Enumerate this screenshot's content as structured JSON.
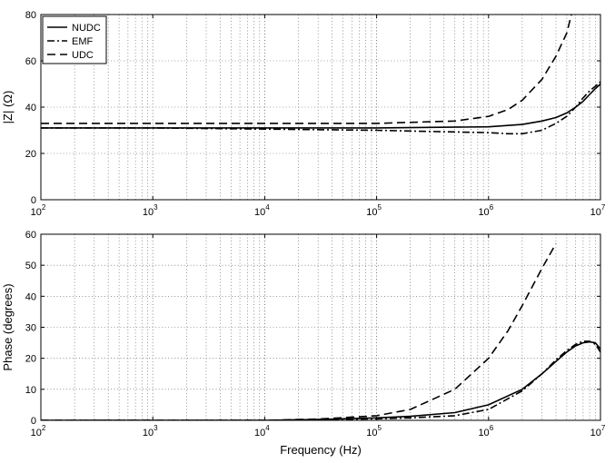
{
  "chart_data": [
    {
      "type": "line",
      "xscale": "log",
      "xlim": [
        100,
        10000000
      ],
      "ylim": [
        0,
        80
      ],
      "yticks": [
        0,
        20,
        40,
        60,
        80
      ],
      "xticks": [
        {
          "base": "10",
          "exp": "2"
        },
        {
          "base": "10",
          "exp": "3"
        },
        {
          "base": "10",
          "exp": "4"
        },
        {
          "base": "10",
          "exp": "5"
        },
        {
          "base": "10",
          "exp": "6"
        },
        {
          "base": "10",
          "exp": "7"
        }
      ],
      "xlabel": "",
      "ylabel": "|Z| (Ω)",
      "grid": true,
      "legend": "top-left",
      "series": [
        {
          "name": "NUDC",
          "style": "solid",
          "x": [
            100,
            1000,
            10000,
            100000,
            1000000,
            2000000,
            3000000,
            4000000,
            5000000,
            6000000,
            7000000,
            8000000,
            9000000,
            10000000
          ],
          "y": [
            31,
            31,
            31,
            31,
            31.5,
            32.5,
            34,
            35.5,
            37.5,
            40,
            42.5,
            45.5,
            48,
            50
          ]
        },
        {
          "name": "EMF",
          "style": "dashdot",
          "x": [
            100,
            1000,
            10000,
            100000,
            300000,
            1000000,
            1500000,
            2000000,
            3000000,
            4000000,
            5000000,
            6000000,
            7000000,
            8000000,
            9000000,
            10000000
          ],
          "y": [
            31,
            31,
            30.5,
            30,
            29.5,
            29,
            28.5,
            28.5,
            30,
            33,
            36,
            40,
            44,
            47,
            49,
            51
          ]
        },
        {
          "name": "UDC",
          "style": "dashed",
          "x": [
            100,
            1000,
            10000,
            100000,
            500000,
            1000000,
            1500000,
            2000000,
            3000000,
            4000000,
            5000000,
            5500000
          ],
          "y": [
            33,
            33,
            33,
            33,
            34,
            36,
            39,
            43,
            52,
            62,
            72,
            80
          ]
        }
      ]
    },
    {
      "type": "line",
      "xscale": "log",
      "xlim": [
        100,
        10000000
      ],
      "ylim": [
        0,
        60
      ],
      "yticks": [
        0,
        10,
        20,
        30,
        40,
        50,
        60
      ],
      "xticks": [
        {
          "base": "10",
          "exp": "2"
        },
        {
          "base": "10",
          "exp": "3"
        },
        {
          "base": "10",
          "exp": "4"
        },
        {
          "base": "10",
          "exp": "5"
        },
        {
          "base": "10",
          "exp": "6"
        },
        {
          "base": "10",
          "exp": "7"
        }
      ],
      "xlabel": "Frequency (Hz)",
      "ylabel": "Phase (degrees)",
      "grid": true,
      "series": [
        {
          "name": "NUDC",
          "style": "solid",
          "x": [
            100,
            10000,
            30000,
            100000,
            200000,
            500000,
            1000000,
            2000000,
            3000000,
            4000000,
            5000000,
            6000000,
            7000000,
            8000000,
            9000000,
            10000000
          ],
          "y": [
            0,
            0,
            0.3,
            0.8,
            1.3,
            2.5,
            5,
            10,
            15,
            19,
            22,
            24,
            25,
            25.3,
            25,
            23
          ]
        },
        {
          "name": "EMF",
          "style": "dashdot",
          "x": [
            100,
            10000,
            30000,
            100000,
            200000,
            500000,
            1000000,
            2000000,
            3000000,
            4000000,
            5000000,
            6000000,
            7000000,
            8000000,
            9000000,
            10000000
          ],
          "y": [
            0,
            0,
            0.2,
            0.5,
            0.8,
            1.5,
            3.5,
            9.5,
            15,
            19.5,
            22.5,
            24.5,
            25.5,
            25.5,
            24.5,
            22
          ]
        },
        {
          "name": "UDC",
          "style": "dashed",
          "x": [
            100,
            10000,
            30000,
            100000,
            200000,
            500000,
            1000000,
            1500000,
            2000000,
            3000000,
            4000000
          ],
          "y": [
            0,
            0,
            0.4,
            1.5,
            3.5,
            10,
            20,
            29,
            37,
            49,
            57
          ]
        }
      ]
    }
  ],
  "colors": {
    "line": "#000000",
    "grid": "#555555",
    "background": "#ffffff"
  }
}
